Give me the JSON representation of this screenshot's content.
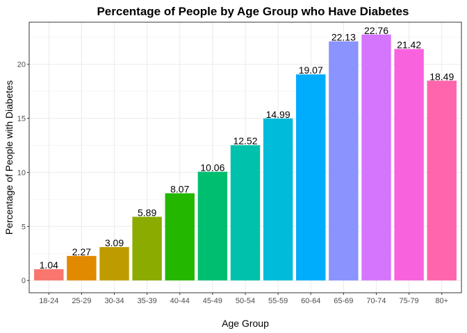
{
  "chart_data": {
    "type": "bar",
    "title": "Percentage of People by Age Group who Have Diabetes",
    "xlabel": "Age Group",
    "ylabel": "Percentage of People with Diabetes",
    "categories": [
      "18-24",
      "25-29",
      "30-34",
      "35-39",
      "40-44",
      "45-49",
      "50-54",
      "55-59",
      "60-64",
      "65-69",
      "70-74",
      "75-79",
      "80+"
    ],
    "values": [
      1.04,
      2.27,
      3.09,
      5.89,
      8.07,
      10.06,
      12.52,
      14.99,
      19.07,
      22.13,
      22.76,
      21.42,
      18.49
    ],
    "value_labels": [
      "1.04",
      "2.27",
      "3.09",
      "5.89",
      "8.07",
      "10.06",
      "12.52",
      "14.99",
      "19.07",
      "22.13",
      "22.76",
      "21.42",
      "18.49"
    ],
    "colors": [
      "#F8766D",
      "#E18A00",
      "#BE9C00",
      "#8CAB00",
      "#24B700",
      "#00BE70",
      "#00C1AB",
      "#00BBDA",
      "#00ACFC",
      "#8B93FF",
      "#D575FE",
      "#F962DD",
      "#FF65AC"
    ],
    "yticks": [
      0,
      5,
      10,
      15,
      20
    ],
    "ytick_labels": [
      "0",
      "5",
      "10",
      "15",
      "20"
    ],
    "ylim": [
      -1.14,
      23.9
    ],
    "grid": true,
    "legend": "none"
  }
}
